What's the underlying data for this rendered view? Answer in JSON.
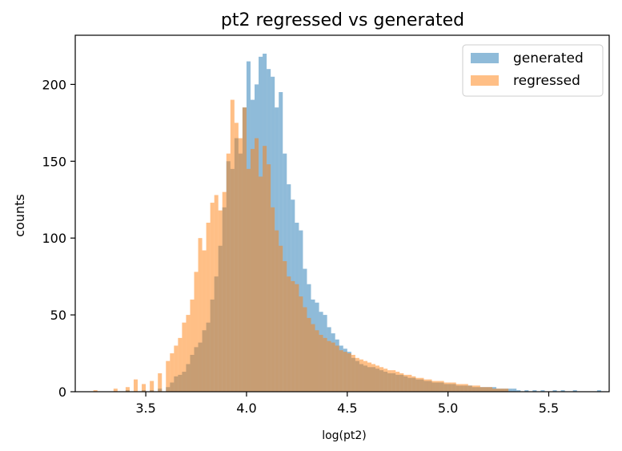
{
  "chart_data": {
    "type": "bar",
    "title": "pt2 regressed vs generated",
    "xlabel": "log(pt2)",
    "ylabel": "counts",
    "xlim": [
      3.15,
      5.8
    ],
    "ylim": [
      0,
      232
    ],
    "x_ticks": [
      3.5,
      4.0,
      4.5,
      5.0,
      5.5
    ],
    "x_tick_labels": [
      "3.5",
      "4.0",
      "4.5",
      "5.0",
      "5.5"
    ],
    "y_ticks": [
      0,
      50,
      100,
      150,
      200
    ],
    "y_tick_labels": [
      "0",
      "50",
      "100",
      "150",
      "200"
    ],
    "grid": false,
    "legend_position": "top-right",
    "bin_width": 0.02,
    "series": [
      {
        "name": "generated",
        "color": "#1f77b4",
        "opacity": 0.5,
        "x": [
          3.4,
          3.48,
          3.52,
          3.56,
          3.6,
          3.62,
          3.64,
          3.66,
          3.68,
          3.7,
          3.72,
          3.74,
          3.76,
          3.78,
          3.8,
          3.82,
          3.84,
          3.86,
          3.88,
          3.9,
          3.92,
          3.94,
          3.96,
          3.98,
          4.0,
          4.02,
          4.04,
          4.06,
          4.08,
          4.1,
          4.12,
          4.14,
          4.16,
          4.18,
          4.2,
          4.22,
          4.24,
          4.26,
          4.28,
          4.3,
          4.32,
          4.34,
          4.36,
          4.38,
          4.4,
          4.42,
          4.44,
          4.46,
          4.48,
          4.5,
          4.52,
          4.54,
          4.56,
          4.58,
          4.6,
          4.62,
          4.64,
          4.66,
          4.68,
          4.7,
          4.72,
          4.74,
          4.76,
          4.78,
          4.8,
          4.82,
          4.84,
          4.86,
          4.88,
          4.9,
          4.92,
          4.94,
          4.96,
          4.98,
          5.0,
          5.02,
          5.04,
          5.06,
          5.08,
          5.1,
          5.12,
          5.14,
          5.16,
          5.18,
          5.2,
          5.22,
          5.24,
          5.26,
          5.28,
          5.3,
          5.32,
          5.34,
          5.38,
          5.42,
          5.46,
          5.52,
          5.56,
          5.62,
          5.74
        ],
        "values": [
          1,
          1,
          1,
          2,
          3,
          6,
          10,
          11,
          13,
          18,
          24,
          29,
          32,
          40,
          45,
          60,
          75,
          95,
          120,
          150,
          145,
          165,
          155,
          185,
          215,
          190,
          200,
          218,
          220,
          210,
          205,
          185,
          195,
          155,
          135,
          125,
          110,
          105,
          80,
          70,
          60,
          58,
          52,
          50,
          42,
          38,
          34,
          30,
          28,
          26,
          22,
          20,
          18,
          17,
          16,
          16,
          15,
          14,
          13,
          12,
          12,
          11,
          11,
          10,
          9,
          9,
          8,
          8,
          7,
          7,
          6,
          6,
          6,
          5,
          5,
          5,
          4,
          4,
          4,
          4,
          3,
          3,
          3,
          3,
          3,
          3,
          2,
          2,
          2,
          2,
          2,
          1,
          1,
          1,
          1,
          1,
          1,
          1,
          1
        ]
      },
      {
        "name": "regressed",
        "color": "#ff7f0e",
        "opacity": 0.5,
        "x": [
          3.24,
          3.34,
          3.4,
          3.44,
          3.48,
          3.52,
          3.56,
          3.6,
          3.62,
          3.64,
          3.66,
          3.68,
          3.7,
          3.72,
          3.74,
          3.76,
          3.78,
          3.8,
          3.82,
          3.84,
          3.86,
          3.88,
          3.9,
          3.92,
          3.94,
          3.96,
          3.98,
          4.0,
          4.02,
          4.04,
          4.06,
          4.08,
          4.1,
          4.12,
          4.14,
          4.16,
          4.18,
          4.2,
          4.22,
          4.24,
          4.26,
          4.28,
          4.3,
          4.32,
          4.34,
          4.36,
          4.38,
          4.4,
          4.42,
          4.44,
          4.46,
          4.48,
          4.5,
          4.52,
          4.54,
          4.56,
          4.58,
          4.6,
          4.62,
          4.64,
          4.66,
          4.68,
          4.7,
          4.72,
          4.74,
          4.76,
          4.78,
          4.8,
          4.82,
          4.84,
          4.86,
          4.88,
          4.9,
          4.92,
          4.94,
          4.96,
          4.98,
          5.0,
          5.02,
          5.04,
          5.06,
          5.08,
          5.1,
          5.12,
          5.14,
          5.16,
          5.18,
          5.2,
          5.22,
          5.24,
          5.26,
          5.28
        ],
        "values": [
          1,
          2,
          3,
          8,
          5,
          7,
          12,
          20,
          25,
          30,
          35,
          45,
          50,
          60,
          78,
          100,
          92,
          110,
          123,
          128,
          118,
          130,
          155,
          190,
          175,
          165,
          185,
          145,
          158,
          165,
          140,
          160,
          148,
          120,
          105,
          95,
          85,
          75,
          72,
          70,
          62,
          55,
          48,
          44,
          40,
          37,
          35,
          33,
          32,
          30,
          27,
          26,
          25,
          24,
          22,
          21,
          20,
          19,
          18,
          17,
          16,
          15,
          14,
          14,
          13,
          12,
          11,
          11,
          10,
          9,
          9,
          8,
          8,
          7,
          7,
          7,
          6,
          6,
          6,
          5,
          5,
          5,
          4,
          4,
          4,
          3,
          3,
          3,
          2,
          2,
          2,
          2
        ]
      }
    ]
  }
}
